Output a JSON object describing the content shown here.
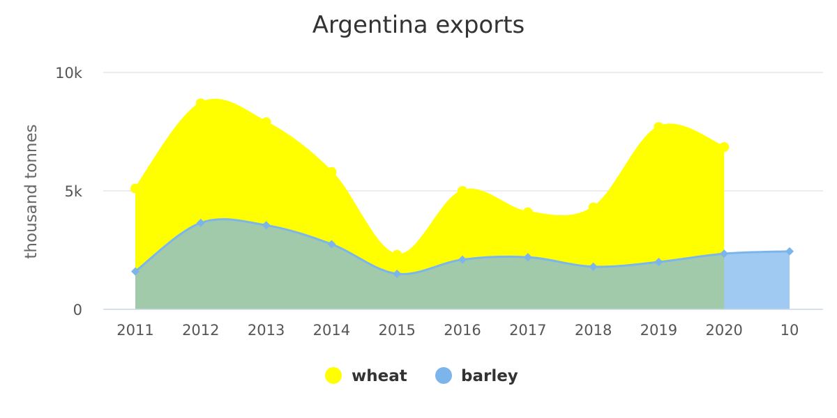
{
  "chart_data": {
    "type": "area",
    "title": "Argentina exports",
    "ylabel": "thousand tonnes",
    "xlabel": "",
    "categories": [
      "2011",
      "2012",
      "2013",
      "2014",
      "2015",
      "2016",
      "2017",
      "2018",
      "2019",
      "2020",
      "10"
    ],
    "ylim": [
      0,
      10000
    ],
    "yticks": [
      0,
      5000,
      10000
    ],
    "ytick_labels": [
      "0",
      "5k",
      "10k"
    ],
    "grid": true,
    "legend_position": "bottom",
    "series": [
      {
        "name": "wheat",
        "color": "#ffff00",
        "marker": "circle",
        "values": [
          5100,
          8700,
          7900,
          5800,
          2300,
          5000,
          4100,
          4300,
          7700,
          6850,
          null
        ]
      },
      {
        "name": "barley",
        "color": "#7cb5ec",
        "marker": "diamond",
        "values": [
          1600,
          3650,
          3550,
          2750,
          1500,
          2100,
          2200,
          1800,
          2000,
          2350,
          2450
        ]
      }
    ]
  }
}
